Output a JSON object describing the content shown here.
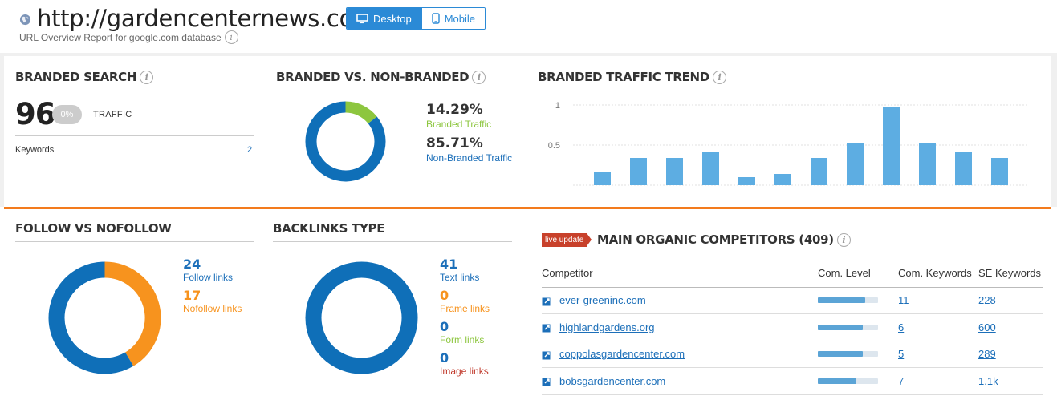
{
  "header": {
    "url": "http://gardencenternews.com",
    "subtitle": "URL Overview Report for google.com database",
    "device_tabs": [
      {
        "label": "Desktop",
        "active": true
      },
      {
        "label": "Mobile",
        "active": false
      }
    ]
  },
  "branded_search": {
    "title": "BRANDED SEARCH",
    "value": "96",
    "pct": "0%",
    "traffic_label": "TRAFFIC",
    "keywords_label": "Keywords",
    "keywords_value": "2"
  },
  "branded_vs_non": {
    "title": "BRANDED VS. NON-BRANDED",
    "branded_pct": "14.29%",
    "branded_label": "Branded Traffic",
    "nonbranded_pct": "85.71%",
    "nonbranded_label": "Non-Branded Traffic",
    "branded_fraction": 0.1429,
    "colors": {
      "branded": "#8dc63f",
      "nonbranded": "#0f6fb8"
    }
  },
  "trend": {
    "title": "BRANDED TRAFFIC TREND",
    "chart_data": {
      "type": "bar",
      "yticks": [
        "1",
        "0.5"
      ],
      "ylim": [
        0,
        1
      ],
      "values": [
        0.17,
        0.34,
        0.34,
        0.41,
        0.1,
        0.14,
        0.34,
        0.53,
        0.98,
        0.53,
        0.41,
        0.34
      ],
      "color": "#5dade2"
    }
  },
  "follow": {
    "title": "FOLLOW VS NOFOLLOW",
    "follow_count": "24",
    "follow_label": "Follow links",
    "nofollow_count": "17",
    "nofollow_label": "Nofollow links",
    "colors": {
      "follow": "#0f6fb8",
      "nofollow": "#f7931e"
    }
  },
  "backlinks": {
    "title": "BACKLINKS TYPE",
    "items": [
      {
        "count": "41",
        "label": "Text links",
        "color": "#1c6fb9"
      },
      {
        "count": "0",
        "label": "Frame links",
        "color": "#f7931e"
      },
      {
        "count": "0",
        "label": "Form links",
        "color": "#8dc63f"
      },
      {
        "count": "0",
        "label": "Image links",
        "color": "#c0392b"
      }
    ]
  },
  "competitors": {
    "badge": "live update",
    "title": "MAIN ORGANIC COMPETITORS (409)",
    "columns": [
      "Competitor",
      "Com. Level",
      "Com. Keywords",
      "SE Keywords"
    ],
    "rows": [
      {
        "domain": "ever-greeninc.com",
        "level": 0.78,
        "com_keywords": "11",
        "se_keywords": "228"
      },
      {
        "domain": "highlandgardens.org",
        "level": 0.74,
        "com_keywords": "6",
        "se_keywords": "600"
      },
      {
        "domain": "coppolasgardencenter.com",
        "level": 0.74,
        "com_keywords": "5",
        "se_keywords": "289"
      },
      {
        "domain": "bobsgardencenter.com",
        "level": 0.64,
        "com_keywords": "7",
        "se_keywords": "1.1k"
      }
    ]
  }
}
